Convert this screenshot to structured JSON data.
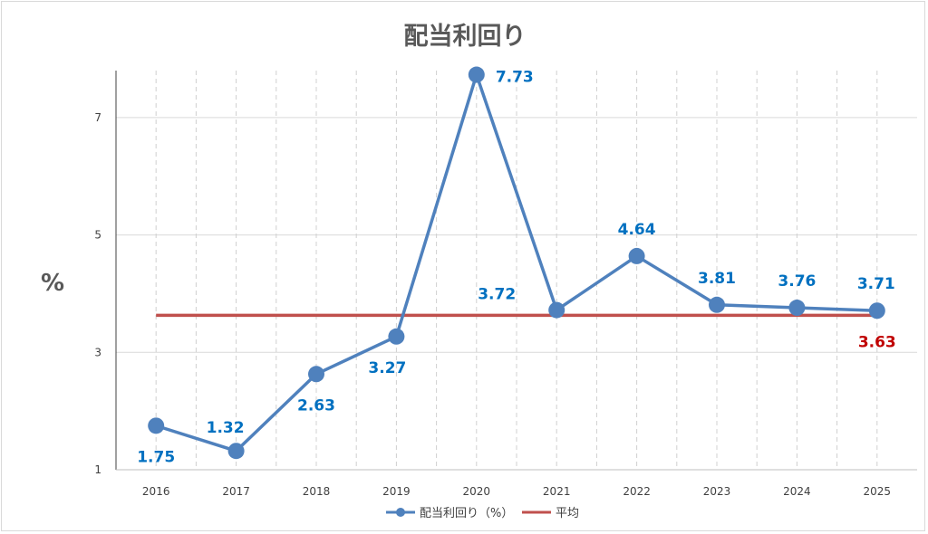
{
  "chart_data": {
    "type": "line",
    "title": "配当利回り",
    "ylabel": "%",
    "xlabel": "",
    "categories": [
      "2016",
      "2017",
      "2018",
      "2019",
      "2020",
      "2021",
      "2022",
      "2023",
      "2024",
      "2025"
    ],
    "ylim": [
      1,
      7.8
    ],
    "yticks": [
      1,
      3,
      5,
      7
    ],
    "grid": {
      "horizontal": true,
      "vertical_dashed": true
    },
    "legend_position": "bottom",
    "series": [
      {
        "name": "配当利回り（%）",
        "values": [
          1.75,
          1.32,
          2.63,
          3.27,
          7.73,
          3.72,
          4.64,
          3.81,
          3.76,
          3.71
        ],
        "labels": [
          "1.75",
          "1.32",
          "2.63",
          "3.27",
          "7.73",
          "3.72",
          "4.64",
          "3.81",
          "3.76",
          "3.71"
        ],
        "color": "#4f81bd",
        "label_color": "#0070c0",
        "marker": "circle"
      },
      {
        "name": "平均",
        "values": [
          3.63,
          3.63,
          3.63,
          3.63,
          3.63,
          3.63,
          3.63,
          3.63,
          3.63,
          3.63
        ],
        "end_label": "3.63",
        "color": "#c0504d",
        "label_color": "#c00000"
      }
    ]
  }
}
